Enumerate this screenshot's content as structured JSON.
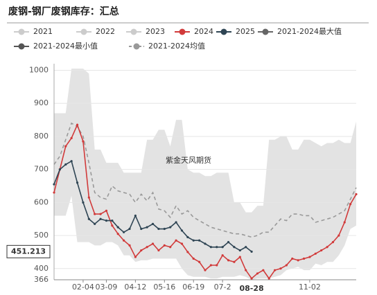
{
  "chart_data": {
    "type": "line",
    "title": "废钢-钢厂废钢库存：汇总",
    "watermark": "紫金天风期货",
    "categories": [
      null,
      null,
      null,
      null,
      null,
      "02-04",
      null,
      null,
      null,
      "03-09",
      null,
      null,
      null,
      null,
      "04-12",
      null,
      null,
      null,
      null,
      "05-16",
      null,
      null,
      null,
      null,
      "06-19",
      null,
      null,
      null,
      null,
      "07-2",
      null,
      null,
      null,
      null,
      "08-28",
      null,
      null,
      null,
      null,
      null,
      null,
      null,
      null,
      null,
      "11-02",
      null,
      null,
      null,
      null,
      null,
      null,
      null,
      null
    ],
    "ylim": [
      366,
      1020
    ],
    "yticks": [
      366,
      400,
      500,
      600,
      700,
      800,
      900,
      1000
    ],
    "grid": true,
    "axis_pointer": {
      "y": 451.213,
      "x": "08-28"
    },
    "series": [
      {
        "name": "2021",
        "color": "#cccccc",
        "visible": false
      },
      {
        "name": "2022",
        "color": "#cccccc",
        "visible": false
      },
      {
        "name": "2023",
        "color": "#cccccc",
        "visible": false
      },
      {
        "name": "2024",
        "color": "#d13a3a",
        "style": "line",
        "values": [
          630,
          700,
          770,
          795,
          835,
          785,
          615,
          565,
          565,
          575,
          530,
          505,
          485,
          470,
          435,
          455,
          465,
          475,
          455,
          470,
          465,
          485,
          475,
          450,
          430,
          420,
          395,
          410,
          410,
          440,
          425,
          420,
          435,
          395,
          370,
          385,
          395,
          370,
          395,
          400,
          410,
          430,
          425,
          430,
          435,
          445,
          455,
          465,
          480,
          500,
          540,
          595,
          625
        ]
      },
      {
        "name": "2025",
        "color": "#2f4554",
        "style": "line",
        "values": [
          655,
          700,
          715,
          725,
          660,
          600,
          550,
          535,
          550,
          545,
          545,
          525,
          510,
          520,
          560,
          520,
          525,
          535,
          520,
          520,
          525,
          540,
          515,
          495,
          485,
          485,
          475,
          465,
          465,
          465,
          480,
          465,
          455,
          465,
          451.213,
          null,
          null,
          null,
          null,
          null,
          null,
          null,
          null,
          null,
          null,
          null,
          null,
          null,
          null,
          null,
          null,
          null,
          null
        ]
      },
      {
        "name": "2021-2024最大值",
        "color": "#666666",
        "style": "area-top",
        "fill": "#e3e3e3",
        "values": [
          870,
          870,
          870,
          1005,
          1005,
          1005,
          990,
          760,
          760,
          720,
          720,
          720,
          690,
          690,
          690,
          690,
          790,
          790,
          820,
          820,
          770,
          850,
          850,
          700,
          690,
          690,
          680,
          680,
          690,
          690,
          690,
          600,
          600,
          570,
          570,
          590,
          590,
          790,
          790,
          800,
          800,
          760,
          760,
          790,
          790,
          780,
          770,
          780,
          780,
          790,
          780,
          780,
          845
        ]
      },
      {
        "name": "2021-2024最小值",
        "color": "#555555",
        "style": "area-bottom",
        "fill": "#ffffff",
        "values": [
          560,
          560,
          560,
          620,
          480,
          480,
          480,
          470,
          470,
          480,
          480,
          470,
          440,
          440,
          420,
          425,
          425,
          430,
          430,
          430,
          430,
          430,
          400,
          380,
          375,
          375,
          375,
          370,
          370,
          375,
          375,
          375,
          380,
          375,
          366,
          370,
          370,
          370,
          375,
          380,
          395,
          400,
          405,
          395,
          395,
          415,
          410,
          420,
          420,
          440,
          470,
          520,
          530
        ]
      },
      {
        "name": "2021-2024均值",
        "color": "#999999",
        "style": "dashed",
        "values": [
          715,
          740,
          790,
          840,
          830,
          800,
          720,
          630,
          615,
          610,
          650,
          635,
          630,
          625,
          600,
          625,
          605,
          630,
          580,
          575,
          555,
          590,
          565,
          575,
          555,
          545,
          535,
          525,
          520,
          515,
          510,
          505,
          505,
          500,
          495,
          500,
          510,
          510,
          530,
          550,
          545,
          565,
          565,
          560,
          560,
          540,
          545,
          550,
          555,
          565,
          575,
          610,
          645
        ]
      }
    ]
  }
}
